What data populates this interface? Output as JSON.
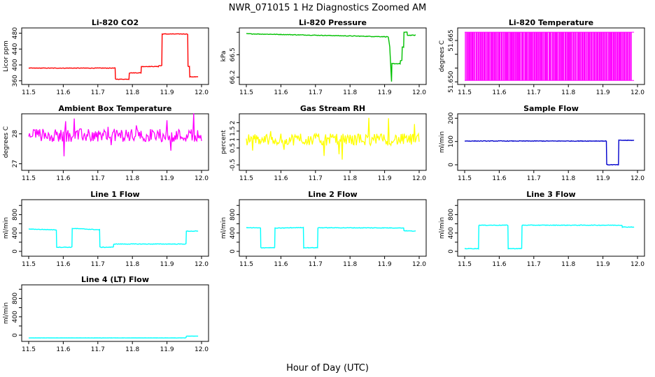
{
  "figure": {
    "title": "NWR_071015  1 Hz Diagnostics Zoomed AM",
    "xlabel": "Hour of Day (UTC)"
  },
  "chart_data": [
    {
      "type": "line",
      "title": "Li-820 CO2",
      "ylabel": "Licor ppm",
      "color": "#ff0000",
      "xlim": [
        11.5,
        12.0
      ],
      "ylim": [
        356,
        488
      ],
      "yticks": [
        360,
        400,
        440,
        480
      ],
      "xticks": [
        11.5,
        11.6,
        11.7,
        11.8,
        11.9,
        12.0
      ],
      "noise": 0.6,
      "style": "step",
      "x": [
        11.5,
        11.75,
        11.751,
        11.79,
        11.791,
        11.825,
        11.826,
        11.875,
        11.876,
        11.885,
        11.886,
        11.96,
        11.961,
        11.965,
        11.966,
        11.99
      ],
      "y": [
        392,
        392,
        364,
        364,
        380,
        380,
        396,
        396,
        398,
        398,
        478,
        478,
        396,
        396,
        370,
        370
      ]
    },
    {
      "type": "line",
      "title": "Li-820 Pressure",
      "ylabel": "kPa",
      "color": "#00c000",
      "xlim": [
        11.5,
        12.0
      ],
      "ylim": [
        66.13,
        66.83
      ],
      "yticks": [
        66.2,
        66.5,
        66.8
      ],
      "yticklabels": [
        "66.2",
        "66.5",
        ""
      ],
      "xticks": [
        11.5,
        11.6,
        11.7,
        11.8,
        11.9,
        12.0
      ],
      "noise": 0.004,
      "style": "step",
      "x": [
        11.5,
        11.91,
        11.911,
        11.915,
        11.916,
        11.92,
        11.921,
        11.945,
        11.946,
        11.95,
        11.951,
        11.955,
        11.956,
        11.965,
        11.966,
        11.99
      ],
      "y": [
        66.78,
        66.74,
        66.73,
        66.6,
        66.5,
        66.14,
        66.38,
        66.38,
        66.42,
        66.42,
        66.6,
        66.6,
        66.8,
        66.8,
        66.76,
        66.76
      ]
    },
    {
      "type": "bars",
      "title": "Li-820 Temperature",
      "ylabel": "degrees C",
      "color": "#ff00ff",
      "xlim": [
        11.5,
        12.0
      ],
      "ylim": [
        51.6498,
        51.6688
      ],
      "yticks": [
        51.65,
        51.655,
        51.66,
        51.665
      ],
      "yticklabels": [
        "51.650",
        "",
        "",
        "51.665"
      ],
      "xticks": [
        11.5,
        11.6,
        11.7,
        11.8,
        11.9,
        12.0
      ],
      "low": 51.6505,
      "high": 51.668,
      "segment_count": 160
    },
    {
      "type": "line",
      "title": "Ambient Box Temperature",
      "ylabel": "degrees C",
      "color": "#ff00ff",
      "xlim": [
        11.5,
        12.0
      ],
      "ylim": [
        26.85,
        28.6
      ],
      "yticks": [
        27.0,
        28.0
      ],
      "xticks": [
        11.5,
        11.6,
        11.7,
        11.8,
        11.9,
        12.0
      ],
      "noise": 0.22,
      "spikes": 0.6,
      "style": "noisy",
      "x": [
        11.5,
        12.0
      ],
      "y": [
        27.95,
        27.95
      ]
    },
    {
      "type": "line",
      "title": "Gas Stream RH",
      "ylabel": "percent",
      "color": "#ffff00",
      "xlim": [
        11.5,
        12.0
      ],
      "ylim": [
        -0.7,
        2.4
      ],
      "yticks": [
        -0.5,
        0.5,
        1.0,
        1.5,
        2.0
      ],
      "xticks": [
        11.5,
        11.6,
        11.7,
        11.8,
        11.9,
        12.0
      ],
      "noise": 0.35,
      "spikes": 1.1,
      "style": "noisy",
      "x": [
        11.5,
        12.0
      ],
      "y": [
        1.0,
        1.0
      ]
    },
    {
      "type": "line",
      "title": "Sample Flow",
      "ylabel": "ml/min",
      "color": "#0000cc",
      "xlim": [
        11.5,
        12.0
      ],
      "ylim": [
        -15,
        210
      ],
      "yticks": [
        0,
        100,
        200
      ],
      "xticks": [
        11.5,
        11.6,
        11.7,
        11.8,
        11.9,
        12.0
      ],
      "noise": 1.2,
      "style": "step",
      "x": [
        11.5,
        11.91,
        11.911,
        11.945,
        11.946,
        11.99
      ],
      "y": [
        102,
        102,
        0,
        0,
        105,
        105
      ]
    },
    {
      "type": "line",
      "title": "Line 1 Flow",
      "ylabel": "ml/min",
      "color": "#00ffff",
      "xlim": [
        11.5,
        12.0
      ],
      "ylim": [
        -60,
        1080
      ],
      "yticks": [
        0,
        200,
        400,
        600,
        800,
        1000
      ],
      "yticklabels": [
        "0",
        "",
        "400",
        "",
        "800",
        ""
      ],
      "xticks": [
        11.5,
        11.6,
        11.7,
        11.8,
        11.9,
        12.0
      ],
      "noise": 6,
      "style": "step",
      "x": [
        11.5,
        11.58,
        11.581,
        11.625,
        11.626,
        11.705,
        11.706,
        11.745,
        11.746,
        11.955,
        11.956,
        11.99
      ],
      "y": [
        485,
        470,
        90,
        90,
        500,
        470,
        90,
        90,
        160,
        160,
        440,
        440
      ]
    },
    {
      "type": "line",
      "title": "Line 2 Flow",
      "ylabel": "ml/min",
      "color": "#00ffff",
      "xlim": [
        11.5,
        12.0
      ],
      "ylim": [
        -60,
        1080
      ],
      "yticks": [
        0,
        200,
        400,
        600,
        800,
        1000
      ],
      "yticklabels": [
        "0",
        "",
        "400",
        "",
        "800",
        ""
      ],
      "xticks": [
        11.5,
        11.6,
        11.7,
        11.8,
        11.9,
        12.0
      ],
      "noise": 6,
      "style": "step",
      "x": [
        11.5,
        11.541,
        11.542,
        11.582,
        11.583,
        11.665,
        11.666,
        11.706,
        11.707,
        11.955,
        11.956,
        11.99
      ],
      "y": [
        515,
        510,
        80,
        80,
        505,
        520,
        80,
        80,
        515,
        510,
        450,
        440
      ]
    },
    {
      "type": "line",
      "title": "Line 3 Flow",
      "ylabel": "ml/min",
      "color": "#00ffff",
      "xlim": [
        11.5,
        12.0
      ],
      "ylim": [
        -60,
        1080
      ],
      "yticks": [
        0,
        200,
        400,
        600,
        800,
        1000
      ],
      "yticklabels": [
        "0",
        "",
        "400",
        "",
        "800",
        ""
      ],
      "xticks": [
        11.5,
        11.6,
        11.7,
        11.8,
        11.9,
        12.0
      ],
      "noise": 6,
      "style": "step",
      "x": [
        11.5,
        11.54,
        11.541,
        11.625,
        11.626,
        11.665,
        11.666,
        11.955,
        11.956,
        11.99
      ],
      "y": [
        60,
        60,
        570,
        570,
        60,
        60,
        570,
        570,
        530,
        530
      ]
    },
    {
      "type": "line",
      "title": "Line 4 (LT) Flow",
      "ylabel": "ml/min",
      "color": "#00ffff",
      "xlim": [
        11.5,
        12.0
      ],
      "ylim": [
        -90,
        1050
      ],
      "yticks": [
        0,
        200,
        400,
        600,
        800,
        1000
      ],
      "yticklabels": [
        "0",
        "",
        "400",
        "",
        "800",
        ""
      ],
      "xticks": [
        11.5,
        11.6,
        11.7,
        11.8,
        11.9,
        12.0
      ],
      "noise": 2,
      "style": "step",
      "x": [
        11.5,
        11.955,
        11.956,
        11.99
      ],
      "y": [
        -60,
        -60,
        -20,
        -20
      ]
    }
  ]
}
